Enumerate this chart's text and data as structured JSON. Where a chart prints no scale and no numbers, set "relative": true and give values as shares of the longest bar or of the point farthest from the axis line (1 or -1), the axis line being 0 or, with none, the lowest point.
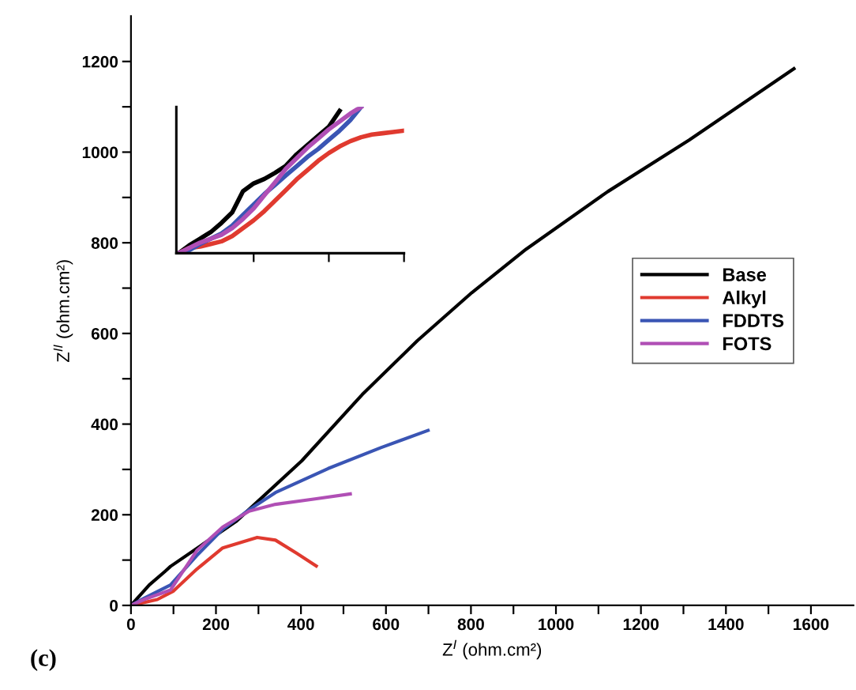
{
  "chart_data": [
    {
      "type": "line",
      "xlabel": "Z$^{I}$ (ohm.cm²)",
      "ylabel": "Z$^{II}$ (ohm.cm²)",
      "annotations": [
        "(c)"
      ],
      "xlim": [
        0,
        1700
      ],
      "ylim": [
        0,
        1300
      ],
      "xticks": [
        0,
        {
          "value": 100,
          "label": null
        },
        200,
        {
          "value": 300,
          "label": null
        },
        400,
        {
          "value": 500,
          "label": null
        },
        600,
        {
          "value": 700,
          "label": null
        },
        800,
        {
          "value": 900,
          "label": null
        },
        1000,
        {
          "value": 1100,
          "label": null
        },
        1200,
        {
          "value": 1300,
          "label": null
        },
        1400,
        {
          "value": 1500,
          "label": null
        },
        1600
      ],
      "yticks": [
        0,
        {
          "value": 100,
          "label": null
        },
        200,
        {
          "value": 300,
          "label": null
        },
        400,
        {
          "value": 500,
          "label": null
        },
        600,
        {
          "value": 700,
          "label": null
        },
        800,
        {
          "value": 900,
          "label": null
        },
        1000,
        {
          "value": 1100,
          "label": null
        },
        1200
      ],
      "grid": false,
      "legend": "center right",
      "marker": "none",
      "line_style": "solid",
      "series": [
        {
          "name": "Base",
          "color": "#000000",
          "x": [
            0,
            43,
            80,
            93,
            247,
            402,
            544,
            674,
            802,
            930,
            1122,
            1314,
            1560
          ],
          "values": [
            0,
            45,
            75,
            86,
            185,
            319,
            465,
            584,
            690,
            786,
            913,
            1027,
            1184
          ]
        },
        {
          "name": "Alkyl",
          "color": "#e03a2f",
          "x": [
            0,
            62,
            99,
            155,
            216,
            297,
            340,
            390,
            436
          ],
          "values": [
            0,
            13,
            31,
            80,
            127,
            150,
            144,
            115,
            87
          ]
        },
        {
          "name": "FDDTS",
          "color": "#3a55b4",
          "x": [
            0,
            31,
            93,
            155,
            216,
            278,
            340,
            464,
            588,
            699
          ],
          "values": [
            0,
            16,
            45,
            110,
            168,
            211,
            249,
            302,
            348,
            386
          ]
        },
        {
          "name": "FOTS",
          "color": "#b04fb5",
          "x": [
            0,
            31,
            93,
            155,
            216,
            278,
            340,
            433,
            516
          ],
          "values": [
            0,
            13,
            34,
            121,
            173,
            208,
            223,
            235,
            246
          ]
        }
      ]
    },
    {
      "type": "line",
      "relative": true,
      "tick_labels": false,
      "marker": "none",
      "line_style": "solid",
      "categories": [
        null,
        null,
        null,
        null,
        null,
        null,
        null,
        null,
        null,
        null,
        null,
        null,
        null,
        null,
        null,
        null,
        null,
        null,
        null,
        null,
        null,
        null
      ],
      "series": [
        {
          "color": "#000000",
          "values": [
            0,
            0.054,
            0.099,
            0.144,
            0.207,
            0.279,
            0.423,
            0.477,
            0.508,
            0.55,
            0.598,
            0.676,
            0.739,
            0.802,
            0.865,
            0.973,
            null,
            null,
            null,
            null,
            null,
            null
          ]
        },
        {
          "color": "#e03a2f",
          "values": [
            0,
            0.036,
            0.045,
            0.063,
            0.081,
            0.117,
            0.171,
            0.225,
            0.288,
            0.36,
            0.432,
            0.505,
            0.568,
            0.631,
            0.685,
            0.73,
            0.766,
            0.793,
            0.811,
            0.82,
            0.829,
            0.838
          ]
        },
        {
          "color": "#3a55b4",
          "values": [
            0,
            0.02,
            0.063,
            0.099,
            0.135,
            0.189,
            0.261,
            0.333,
            0.405,
            0.468,
            0.532,
            0.595,
            0.658,
            0.712,
            0.775,
            0.838,
            0.91,
            1,
            null,
            null,
            null,
            null
          ]
        },
        {
          "color": "#b04fb5",
          "values": [
            0,
            0.036,
            0.072,
            0.099,
            0.126,
            0.171,
            0.234,
            0.306,
            0.396,
            0.486,
            0.577,
            0.649,
            0.721,
            0.784,
            0.847,
            0.901,
            0.955,
            1,
            null,
            null,
            null,
            null
          ]
        }
      ]
    }
  ]
}
